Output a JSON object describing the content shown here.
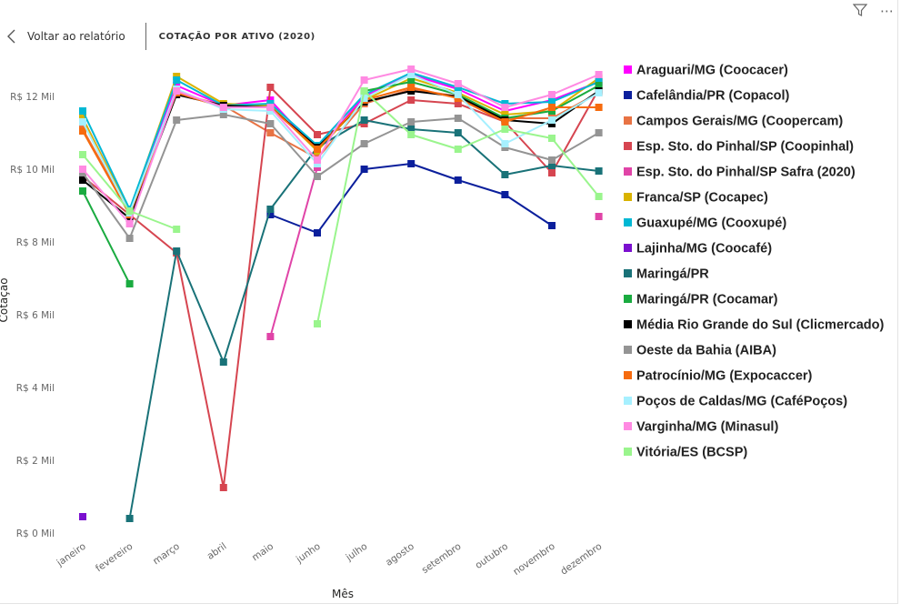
{
  "header": {
    "back_label": "Voltar ao relatório",
    "tile_title": "COTAÇÃO POR ATIVO (2020)"
  },
  "toolbar": {
    "filter_icon": "filter-icon",
    "more_icon": "more-options-icon"
  },
  "chart_data": {
    "type": "line",
    "xlabel": "Mês",
    "ylabel": "Cotação",
    "ylim": [
      0,
      13000
    ],
    "yticks": [
      0,
      2000,
      4000,
      6000,
      8000,
      10000,
      12000
    ],
    "ytick_labels": [
      "R$ 0 Mil",
      "R$ 2 Mil",
      "R$ 4 Mil",
      "R$ 6 Mil",
      "R$ 8 Mil",
      "R$ 10 Mil",
      "R$ 12 Mil"
    ],
    "categories": [
      "janeiro",
      "fevereiro",
      "março",
      "abril",
      "maio",
      "junho",
      "julho",
      "agosto",
      "setembro",
      "outubro",
      "novembro",
      "dezembro"
    ],
    "legend_position": "right",
    "marker": "square",
    "series": [
      {
        "name": "Araguari/MG (Coocacer)",
        "color": "#FF00FF",
        "values": [
          11400,
          8850,
          12300,
          11750,
          11900,
          10500,
          12000,
          12600,
          12200,
          11600,
          11900,
          12400
        ]
      },
      {
        "name": "Cafelândia/PR (Copacol)",
        "color": "#0B1F9C",
        "values": [
          null,
          null,
          null,
          null,
          8750,
          8250,
          10000,
          10150,
          9700,
          9300,
          8450,
          null
        ]
      },
      {
        "name": "Campos Gerais/MG (Coopercam)",
        "color": "#E87344",
        "values": [
          11100,
          8800,
          12100,
          11750,
          11000,
          10300,
          11800,
          12200,
          12000,
          11400,
          11400,
          12100
        ]
      },
      {
        "name": "Esp. Sto. do Pinhal/SP (Coopinhal)",
        "color": "#D64550",
        "values": [
          9800,
          8750,
          7700,
          1250,
          12250,
          10950,
          11250,
          11900,
          11800,
          11300,
          9900,
          12200
        ]
      },
      {
        "name": "Esp. Sto. do Pinhal/SP Safra (2020)",
        "color": "#E044A7",
        "values": [
          null,
          null,
          null,
          null,
          5400,
          10050,
          null,
          null,
          null,
          null,
          null,
          8700
        ]
      },
      {
        "name": "Franca/SP (Cocapec)",
        "color": "#D9B300",
        "values": [
          11400,
          8850,
          12550,
          11800,
          11750,
          10500,
          11900,
          12500,
          12100,
          11500,
          11600,
          12500
        ]
      },
      {
        "name": "Guaxupé/MG (Cooxupé)",
        "color": "#00B8D4",
        "values": [
          11600,
          8900,
          12450,
          11750,
          11800,
          10650,
          12050,
          12650,
          12250,
          11800,
          11850,
          12400
        ]
      },
      {
        "name": "Lajinha/MG (Coocafé)",
        "color": "#7B10CF",
        "values": [
          450,
          null,
          null,
          null,
          null,
          null,
          null,
          null,
          null,
          null,
          null,
          null
        ]
      },
      {
        "name": "Maringá/PR",
        "color": "#197278",
        "values": [
          null,
          400,
          7750,
          4700,
          8900,
          10600,
          11350,
          11100,
          11000,
          9850,
          10100,
          9950
        ]
      },
      {
        "name": "Maringá/PR (Cocamar)",
        "color": "#1AAB40",
        "values": [
          9400,
          6850,
          null,
          null,
          null,
          null,
          12150,
          12400,
          12050,
          11400,
          11600,
          12300
        ]
      },
      {
        "name": "Média Rio Grande do Sul (Clicmercado)",
        "color": "#000000",
        "values": [
          9700,
          8650,
          12050,
          11750,
          11700,
          10600,
          11850,
          12150,
          12000,
          11350,
          11250,
          12150
        ]
      },
      {
        "name": "Oeste da Bahia (AIBA)",
        "color": "#949494",
        "values": [
          9900,
          8100,
          11350,
          11500,
          11250,
          9800,
          10700,
          11300,
          11400,
          10600,
          10250,
          11000
        ]
      },
      {
        "name": "Patrocínio/MG (Expocaccer)",
        "color": "#F66B0E",
        "values": [
          11050,
          8750,
          12100,
          11700,
          11700,
          10550,
          11900,
          12250,
          11950,
          11300,
          11700,
          11700
        ]
      },
      {
        "name": "Poços de Caldas/MG (CaféPoços)",
        "color": "#A6F0FF",
        "values": [
          11300,
          8800,
          12200,
          11650,
          11600,
          10150,
          11950,
          12600,
          12050,
          10700,
          11350,
          12100
        ]
      },
      {
        "name": "Varginha/MG (Minasul)",
        "color": "#FF8AE2",
        "values": [
          10000,
          8500,
          12150,
          11700,
          11700,
          10250,
          12450,
          12750,
          12350,
          11700,
          12050,
          12600
        ]
      },
      {
        "name": "Vitória/ES (BCSP)",
        "color": "#9AF58D",
        "values": [
          10400,
          8850,
          8350,
          null,
          null,
          5750,
          12150,
          10950,
          10550,
          11100,
          10850,
          9250
        ]
      }
    ]
  }
}
